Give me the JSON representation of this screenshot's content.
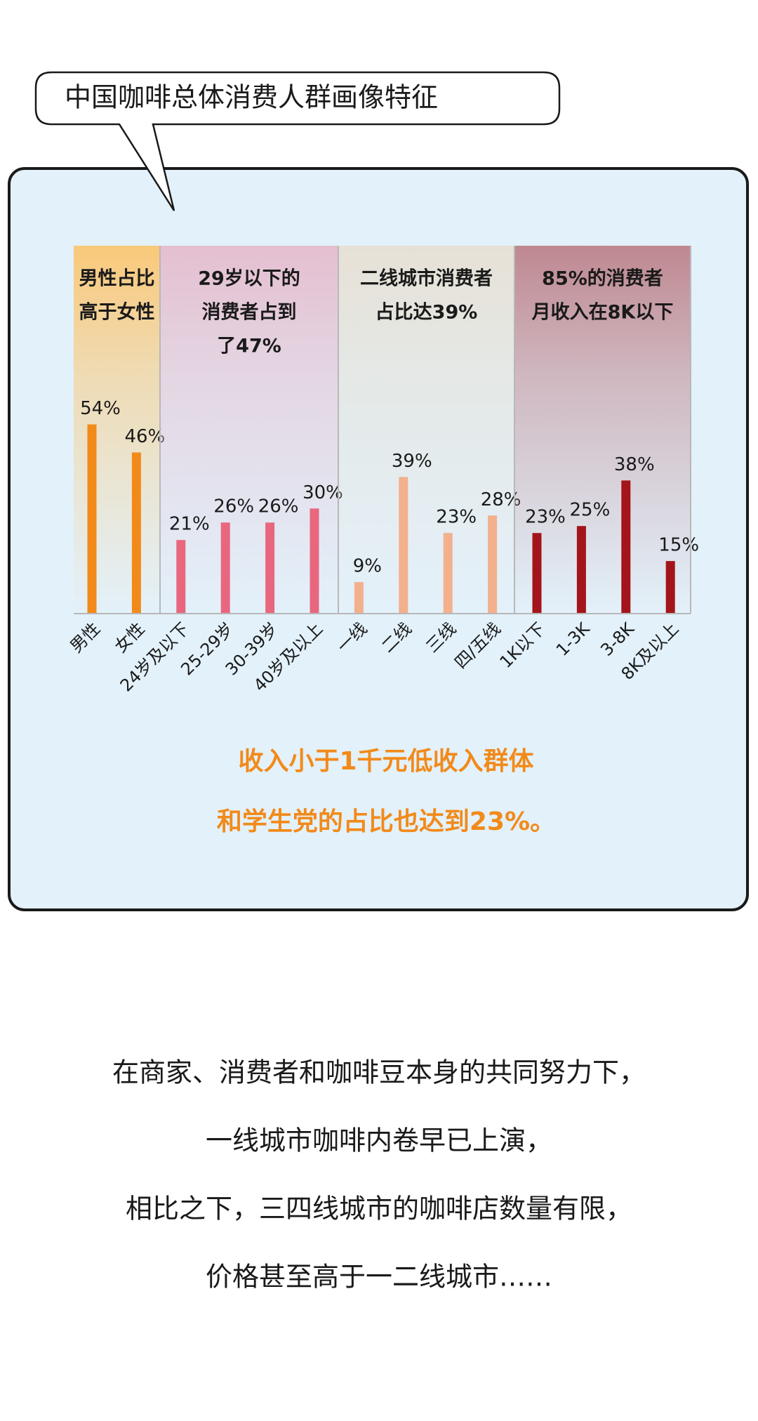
{
  "chart_data": {
    "type": "bar",
    "title": "中国咖啡总体消费人群画像特征",
    "ylim": [
      0,
      105
    ],
    "groups": [
      {
        "annotation": [
          "男性占比",
          "高于女性"
        ],
        "color": "#f28a1a",
        "background": "#f9c97a",
        "categories": [
          "男性",
          "女性"
        ],
        "values": [
          54,
          46
        ],
        "value_labels": [
          "54%",
          "46%"
        ]
      },
      {
        "annotation": [
          "29岁以下的",
          "消费者占到",
          "了47%"
        ],
        "color": "#e8677f",
        "background": "#e4bfd0",
        "categories": [
          "24岁及以下",
          "25-29岁",
          "30-39岁",
          "40岁及以上"
        ],
        "values": [
          21,
          26,
          26,
          30
        ],
        "value_labels": [
          "21%",
          "26%",
          "26%",
          "30%"
        ]
      },
      {
        "annotation": [
          "二线城市消费者",
          "占比达39%"
        ],
        "color": "#f3b08d",
        "background": "#e6e1d6",
        "categories": [
          "一线",
          "二线",
          "三线",
          "四/五线"
        ],
        "values": [
          9,
          39,
          23,
          28
        ],
        "value_labels": [
          "9%",
          "39%",
          "23%",
          "28%"
        ]
      },
      {
        "annotation": [
          "85%的消费者",
          "月收入在8K以下"
        ],
        "color": "#a3151a",
        "background": "#bf8890",
        "categories": [
          "1K以下",
          "1-3K",
          "3-8K",
          "8K及以上"
        ],
        "values": [
          23,
          25,
          38,
          15
        ],
        "value_labels": [
          "23%",
          "25%",
          "38%",
          "15%"
        ]
      }
    ],
    "notes": [
      "收入小于1千元低收入群体",
      "和学生党的占比也达到23%。"
    ]
  },
  "paragraph": [
    "在商家、消费者和咖啡豆本身的共同努力下，",
    "一线城市咖啡内卷早已上演，",
    "相比之下，三四线城市的咖啡店数量有限，",
    "价格甚至高于一二线城市……"
  ]
}
